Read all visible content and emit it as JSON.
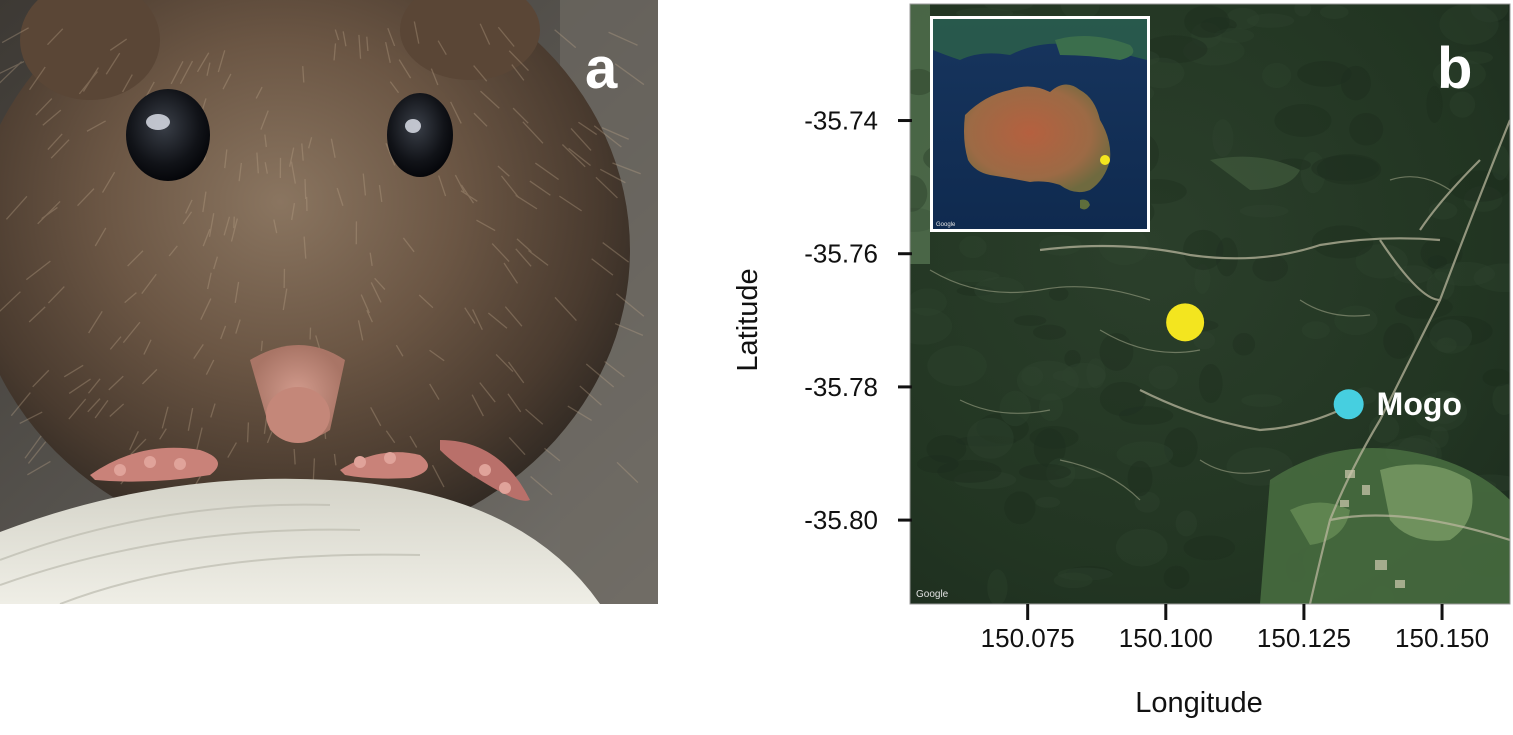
{
  "panel_a": {
    "letter": "a",
    "subject": "mouse-face-photo"
  },
  "panel_b": {
    "letter": "b",
    "x_axis_title": "Longitude",
    "y_axis_title": "Latitude",
    "x_ticks": [
      {
        "value": 150.075,
        "label": "150.075"
      },
      {
        "value": 150.1,
        "label": "150.100"
      },
      {
        "value": 150.125,
        "label": "150.125"
      },
      {
        "value": 150.15,
        "label": "150.150"
      }
    ],
    "y_ticks": [
      {
        "value": -35.74,
        "label": "-35.74"
      },
      {
        "value": -35.76,
        "label": "-35.76"
      },
      {
        "value": -35.78,
        "label": "-35.78"
      },
      {
        "value": -35.8,
        "label": "-35.80"
      }
    ],
    "x_range": [
      150.0537,
      150.1623
    ],
    "y_range": [
      -35.8126,
      -35.7225
    ],
    "points": [
      {
        "lon": 150.1035,
        "lat": -35.7703,
        "color": "#f3e51f",
        "label": ""
      },
      {
        "lon": 150.1331,
        "lat": -35.7826,
        "color": "#46cfe0",
        "label": "Mogo"
      }
    ],
    "inset": {
      "type": "australia-overview",
      "marker_color": "#f3e51f"
    },
    "map_credit": "Google",
    "colors": {
      "forest_dark": "#223322",
      "forest_mid": "#2f4630",
      "clearing": "#556d45",
      "road": "#b4b39a"
    }
  }
}
